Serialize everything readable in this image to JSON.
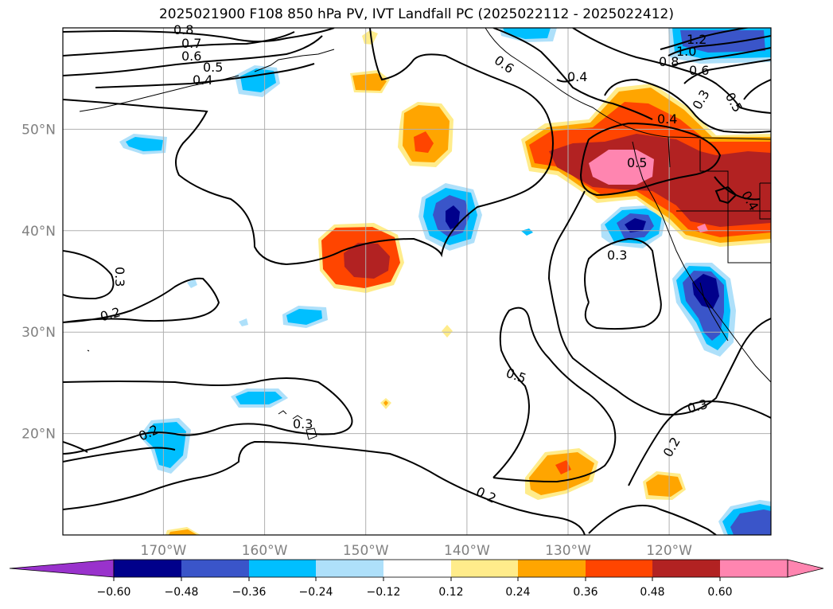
{
  "title": "2025021900 F108 850 hPa PV, IVT Landfall PC (2025022112 - 2025022412)",
  "lat_ticks": [
    "50°N",
    "40°N",
    "30°N",
    "20°N"
  ],
  "lon_ticks": [
    "170°W",
    "160°W",
    "150°W",
    "140°W",
    "130°W",
    "120°W"
  ],
  "colorbar": {
    "ticks": [
      "−0.60",
      "−0.48",
      "−0.36",
      "−0.24",
      "−0.12",
      "0.12",
      "0.24",
      "0.36",
      "0.48",
      "0.60"
    ],
    "colors": [
      "#9932cc",
      "#00008b",
      "#3a55c9",
      "#00bfff",
      "#aee0fa",
      "#ffffff",
      "#ffec8b",
      "#ffa500",
      "#ff4500",
      "#b22222",
      "#ff85b0"
    ]
  },
  "contour_labels": [
    "0.8",
    "0.7",
    "0.6",
    "0.5",
    "0.4",
    "0.6",
    "0.4",
    "1.2",
    "1.0",
    "0.8",
    "0.6",
    "0.3",
    "0.5",
    "0.4",
    "0.5",
    "0.4",
    "0.3",
    "0.3",
    "0.2",
    "0.5",
    "0.2",
    "0.3",
    "0.3",
    "0.2",
    "0.2"
  ],
  "map": {
    "projection": "PlateCarree",
    "lat_range": [
      10,
      60
    ],
    "lon_range": [
      -180,
      -110
    ],
    "gridlines": true
  }
}
